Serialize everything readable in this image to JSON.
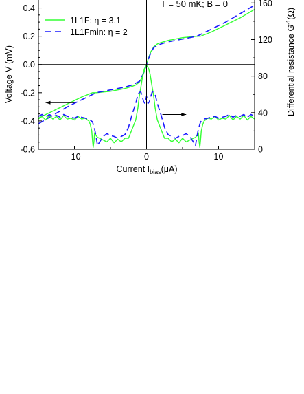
{
  "chart_data": {
    "type": "line",
    "conditions": "T = 50 mK;   B = 0",
    "xlabel": {
      "prefix": "Current  I",
      "subscript": "bias",
      "suffix": "(μA)"
    },
    "ylabel_left": "Voltage V (mV)",
    "ylabel_right": {
      "prefix": "Differential resistance  G",
      "superscript": "-1",
      "suffix": "(Ω)"
    },
    "xlim": [
      -15,
      15
    ],
    "ylim_left": [
      -0.6,
      0.5
    ],
    "ylim_right": [
      0,
      170
    ],
    "x_ticks": [
      -10,
      0,
      10
    ],
    "x_tick_labels": [
      "-10",
      "0",
      "10"
    ],
    "y_left_ticks": [
      -0.6,
      -0.4,
      -0.2,
      0.0,
      0.2,
      0.4
    ],
    "y_left_tick_labels": [
      "-0.6",
      "-0.4",
      "-0.2",
      "0.0",
      "0.2",
      "0.4"
    ],
    "y_right_ticks": [
      0,
      40,
      80,
      120,
      160
    ],
    "y_right_tick_labels": [
      "0",
      "40",
      "80",
      "120",
      "160"
    ],
    "zero_line": 0.0,
    "colors": {
      "1L1F": "#33ff33",
      "1L1Fmin": "#1a1aff",
      "arrow": "#000000"
    },
    "legend": {
      "placement": "top-left",
      "entries": [
        {
          "series": "1L1F",
          "label": "1L1F:  η = 3.1"
        },
        {
          "series": "1L1Fmin",
          "label": "1L1Fmin:  η = 2"
        }
      ]
    },
    "arrows": [
      {
        "target_axis": "left",
        "from": [
          -10,
          -0.27
        ],
        "to": [
          -14,
          -0.27
        ]
      },
      {
        "target_axis": "right",
        "from": [
          2.2,
          38
        ],
        "to": [
          5.5,
          38
        ]
      }
    ],
    "series": [
      {
        "name": "1L1F",
        "quantity": "V",
        "axis": "left",
        "style": "solid",
        "x": [
          -15,
          -13,
          -11,
          -9,
          -7.5,
          -7,
          -5,
          -3,
          -2,
          -1.5,
          -1,
          -0.6,
          -0.3,
          0,
          0.3,
          0.6,
          1,
          1.5,
          2,
          3,
          5,
          7,
          7.5,
          9,
          11,
          13,
          15
        ],
        "y": [
          -0.38,
          -0.33,
          -0.28,
          -0.23,
          -0.2,
          -0.2,
          -0.19,
          -0.17,
          -0.155,
          -0.145,
          -0.125,
          -0.09,
          -0.05,
          0.0,
          0.05,
          0.09,
          0.125,
          0.145,
          0.155,
          0.17,
          0.19,
          0.2,
          0.2,
          0.23,
          0.28,
          0.33,
          0.39
        ]
      },
      {
        "name": "1L1Fmin",
        "quantity": "V",
        "axis": "left",
        "style": "dashed",
        "x": [
          -15,
          -13,
          -11,
          -9,
          -7,
          -5,
          -3,
          -2,
          -1,
          -0.5,
          0,
          0.5,
          1,
          2,
          3,
          5,
          7,
          9,
          11,
          13,
          15
        ],
        "y": [
          -0.42,
          -0.36,
          -0.3,
          -0.25,
          -0.2,
          -0.18,
          -0.16,
          -0.145,
          -0.12,
          -0.07,
          0.0,
          0.07,
          0.12,
          0.145,
          0.16,
          0.18,
          0.2,
          0.25,
          0.3,
          0.36,
          0.42
        ]
      },
      {
        "name": "1L1F",
        "quantity": "dV/dI",
        "axis": "right",
        "style": "solid",
        "x": [
          -15,
          -14.5,
          -14,
          -13.5,
          -13,
          -12.5,
          -12,
          -11.5,
          -11,
          -10.5,
          -10,
          -9.5,
          -9,
          -8.5,
          -8.2,
          -8,
          -7.8,
          -7.6,
          -7.5,
          -7.4,
          -7.3,
          -7.2,
          -7,
          -6.8,
          -6.5,
          -6,
          -5.5,
          -5,
          -4.5,
          -4,
          -3.5,
          -3,
          -2.5,
          -2,
          -1.5,
          -1.2,
          -1,
          -0.7,
          -0.5,
          -0.3,
          0,
          0.3,
          0.5,
          0.7,
          1,
          1.2,
          1.5,
          2,
          2.5,
          3,
          3.5,
          4,
          4.5,
          5,
          5.5,
          6,
          6.5,
          6.8,
          7,
          7.2,
          7.3,
          7.4,
          7.5,
          7.6,
          7.8,
          8,
          8.2,
          8.5,
          9,
          9.5,
          10,
          10.5,
          11,
          11.5,
          12,
          12.5,
          13,
          13.5,
          14,
          14.5,
          15
        ],
        "y": [
          33,
          36,
          32,
          37,
          33,
          36,
          32,
          37,
          33,
          34,
          32,
          36,
          33,
          34,
          32,
          31,
          27,
          20,
          10,
          2,
          8,
          18,
          15,
          13,
          12,
          10,
          8,
          12,
          7,
          11,
          8,
          12,
          12,
          22,
          32,
          45,
          58,
          72,
          82,
          88,
          92,
          88,
          82,
          72,
          58,
          45,
          32,
          22,
          12,
          12,
          8,
          11,
          7,
          12,
          8,
          10,
          12,
          13,
          15,
          18,
          8,
          2,
          10,
          20,
          27,
          31,
          32,
          34,
          33,
          36,
          32,
          34,
          33,
          37,
          32,
          36,
          33,
          37,
          32,
          36,
          33
        ]
      },
      {
        "name": "1L1Fmin",
        "quantity": "dV/dI",
        "axis": "right",
        "style": "dashed",
        "x": [
          -15,
          -14.5,
          -14,
          -13.5,
          -13,
          -12.5,
          -12,
          -11.5,
          -11,
          -10.5,
          -10,
          -9.5,
          -9,
          -8.5,
          -8,
          -7.5,
          -7.2,
          -7,
          -6.8,
          -6.5,
          -6,
          -5.5,
          -5,
          -4.5,
          -4,
          -3.5,
          -3,
          -2.5,
          -2,
          -1.5,
          -1.2,
          -1,
          -0.8,
          -0.6,
          -0.4,
          -0.2,
          0,
          0.2,
          0.4,
          0.6,
          0.8,
          1,
          1.2,
          1.5,
          2,
          2.5,
          3,
          3.5,
          4,
          4.5,
          5,
          5.5,
          6,
          6.5,
          6.8,
          7,
          7.2,
          7.5,
          8,
          8.5,
          9,
          9.5,
          10,
          10.5,
          11,
          11.5,
          12,
          12.5,
          13,
          13.5,
          14,
          14.5,
          15
        ],
        "y": [
          36,
          38,
          35,
          38,
          36,
          37,
          35,
          38,
          36,
          35,
          34,
          36,
          35,
          34,
          33,
          30,
          22,
          14,
          4,
          8,
          14,
          17,
          15,
          14,
          12,
          14,
          16,
          24,
          38,
          50,
          60,
          62,
          63,
          58,
          52,
          50,
          58,
          50,
          52,
          58,
          63,
          62,
          60,
          50,
          38,
          24,
          16,
          14,
          12,
          14,
          15,
          17,
          14,
          8,
          4,
          14,
          22,
          30,
          33,
          34,
          35,
          36,
          34,
          35,
          36,
          38,
          35,
          37,
          36,
          38,
          35,
          38,
          36
        ]
      }
    ]
  }
}
